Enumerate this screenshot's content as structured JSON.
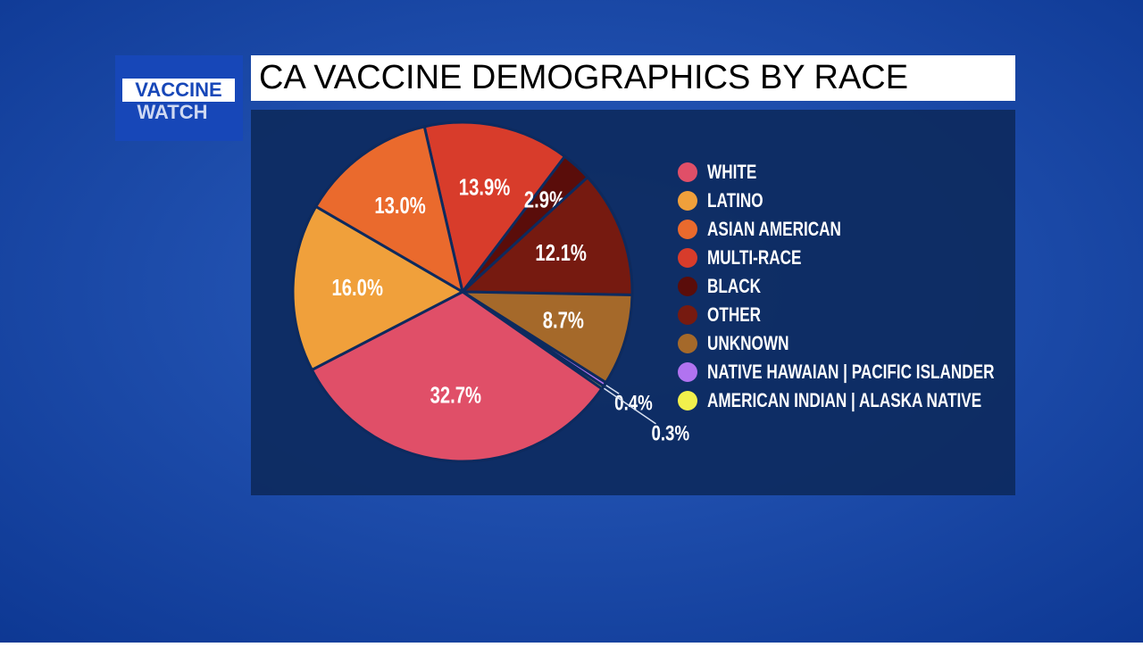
{
  "logo": {
    "line1": "VACCINE",
    "line2": "WATCH"
  },
  "chart_data": {
    "type": "pie",
    "title": "CA VACCINE DEMOGRAPHICS BY RACE",
    "categories": [
      "MULTI-RACE",
      "BLACK",
      "OTHER",
      "UNKNOWN",
      "NATIVE HAWAIAN | PACIFIC ISLANDER",
      "AMERICAN INDIAN  | ALASKA NATIVE",
      "WHITE",
      "LATINO",
      "ASIAN AMERICAN"
    ],
    "values": [
      13.9,
      2.9,
      12.1,
      8.7,
      0.4,
      0.3,
      32.7,
      16.0,
      13.0
    ],
    "value_labels": [
      "13.9%",
      "2.9%",
      "12.1%",
      "8.7%",
      "0.4%",
      "0.3%",
      "32.7%",
      "16.0%",
      "13.0%"
    ],
    "colors": [
      "#d83c2b",
      "#5a0d0a",
      "#761a10",
      "#a5692a",
      "#b173f0",
      "#f2f04c",
      "#e04f68",
      "#f0a03b",
      "#ea6a2d"
    ],
    "legend_order": [
      6,
      7,
      8,
      0,
      1,
      2,
      3,
      4,
      5
    ],
    "legend": "right"
  }
}
